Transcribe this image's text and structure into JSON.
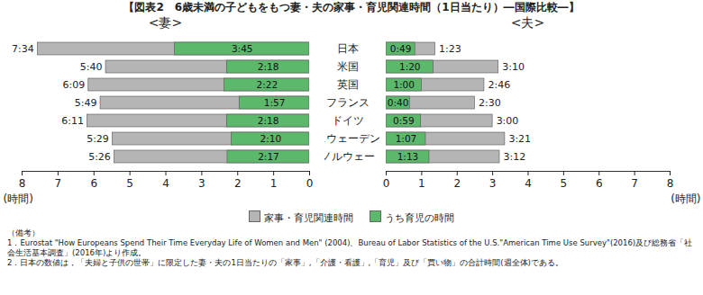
{
  "title": "【図表2　6歳未満の子どもをもつ妻・夫の家事・育児関連時間（1日当たり）―国際比較―】",
  "notes": [
    "（備考）",
    "1．Eurostat \"How Europeans Spend Their Time Everyday Life of Women and Men\" (2004)、Bureau of Labor Statistics of the U.S.\"American Time Use Survey\"(2016)及び総務省「社会生活基本調査」(2016年)より作成。",
    "2．日本の数値は，「夫婦と子供の世帯」に限定した妻・夫の1日当たりの「家事」,「介護・看護」,「育児」及び「買い物」の合計時間(週全体)である。"
  ],
  "chart_data": [
    {
      "type": "bar",
      "title": "<妻>",
      "orientation": "horizontal",
      "stacked": false,
      "data_labels": true,
      "tick_labels": "x",
      "grid": false,
      "categories": [
        "日本",
        "米国",
        "英国",
        "フランス",
        "ドイツ",
        "スウェーデン",
        "ノルウェー"
      ],
      "xlabel": "(時間)",
      "xlim": [
        8,
        0
      ],
      "xticks": [
        8,
        7,
        6,
        5,
        4,
        3,
        2,
        1,
        0
      ],
      "series": [
        {
          "name": "家事・育児関連時間",
          "color": "#b5b5b5",
          "values": [
            7.567,
            5.667,
            6.15,
            5.817,
            6.183,
            5.483,
            5.433
          ],
          "value_labels": [
            "7:34",
            "5:40",
            "6:09",
            "5:49",
            "6:11",
            "5:29",
            "5:26"
          ]
        },
        {
          "name": "うち育児の時間",
          "color": "#5cb86a",
          "values": [
            3.75,
            2.3,
            2.367,
            1.95,
            2.3,
            2.167,
            2.283
          ],
          "value_labels": [
            "3:45",
            "2:18",
            "2:22",
            "1:57",
            "2:18",
            "2:10",
            "2:17"
          ]
        }
      ]
    },
    {
      "type": "bar",
      "title": "<夫>",
      "orientation": "horizontal",
      "stacked": false,
      "data_labels": true,
      "tick_labels": true,
      "grid": false,
      "categories": [
        "日本",
        "米国",
        "英国",
        "フランス",
        "ドイツ",
        "スウェーデン",
        "ノルウェー"
      ],
      "xlabel": "(時間)",
      "xlim": [
        0,
        8
      ],
      "xticks": [
        0,
        1,
        2,
        3,
        4,
        5,
        6,
        7,
        8
      ],
      "series": [
        {
          "name": "家事・育児関連時間",
          "color": "#b5b5b5",
          "values": [
            1.383,
            3.167,
            2.767,
            2.5,
            3.0,
            3.35,
            3.2
          ],
          "value_labels": [
            "1:23",
            "3:10",
            "2:46",
            "2:30",
            "3:00",
            "3:21",
            "3:12"
          ]
        },
        {
          "name": "うち育児の時間",
          "color": "#5cb86a",
          "values": [
            0.817,
            1.333,
            1.0,
            0.667,
            0.983,
            1.117,
            1.217
          ],
          "value_labels": [
            "0:49",
            "1:20",
            "1:00",
            "0:40",
            "0:59",
            "1:07",
            "1:13"
          ]
        }
      ]
    }
  ]
}
